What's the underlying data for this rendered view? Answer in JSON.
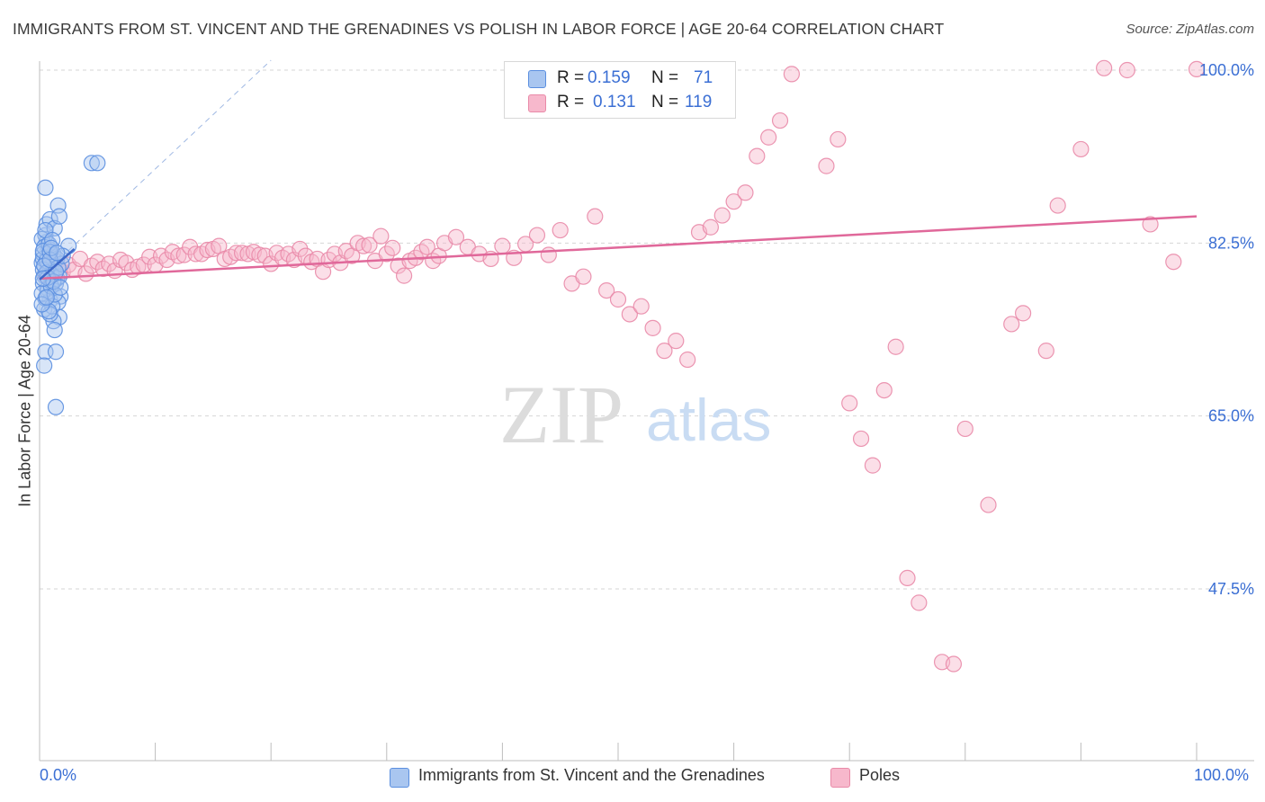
{
  "title": "IMMIGRANTS FROM ST. VINCENT AND THE GRENADINES VS POLISH IN LABOR FORCE | AGE 20-64 CORRELATION CHART",
  "source": "Source: ZipAtlas.com",
  "legend": {
    "row1": {
      "r_label": "R =",
      "r_value": "0.159",
      "n_label": "N =",
      "n_value": "71"
    },
    "row2": {
      "r_label": "R =",
      "r_value": "0.131",
      "n_label": "N =",
      "n_value": "119"
    }
  },
  "bottom_legend": {
    "series1": "Immigrants from St. Vincent and the Grenadines",
    "series2": "Poles"
  },
  "axes": {
    "x_min_label": "0.0%",
    "x_max_label": "100.0%",
    "y_title": "In Labor Force | Age 20-64"
  },
  "colors": {
    "blue_fill": "#a9c6f0",
    "blue_stroke": "#5b8fe0",
    "blue_line": "#3d68c8",
    "pink_fill": "#f7b8cc",
    "pink_stroke": "#e98aa8",
    "pink_line": "#e0689a",
    "tick_label": "#3b6fd4",
    "grid": "#d5d5d5"
  },
  "chart_data": {
    "type": "scatter",
    "title": "IMMIGRANTS FROM ST. VINCENT AND THE GRENADINES VS POLISH IN LABOR FORCE | AGE 20-64 CORRELATION CHART",
    "xlabel": "",
    "ylabel": "In Labor Force | Age 20-64",
    "xlim": [
      0,
      100
    ],
    "ylim": [
      30,
      102
    ],
    "y_ticks": [
      47.5,
      65.0,
      82.5,
      100.0
    ],
    "y_tick_labels": [
      "47.5%",
      "65.0%",
      "82.5%",
      "100.0%"
    ],
    "grid": true,
    "legend_position": "top-center",
    "series": [
      {
        "name": "Immigrants from St. Vincent and the Grenadines",
        "color": "#5b8fe0",
        "r": 0.159,
        "n": 71,
        "trend": {
          "x": [
            0,
            3
          ],
          "y": [
            78.8,
            81.9
          ]
        },
        "reference_line": {
          "x": [
            0,
            20
          ],
          "y": [
            79.0,
            101.0
          ]
        },
        "points": [
          [
            0.2,
            80.5
          ],
          [
            0.4,
            79.2
          ],
          [
            0.3,
            81.4
          ],
          [
            0.6,
            82.6
          ],
          [
            0.5,
            83.3
          ],
          [
            0.8,
            81.9
          ],
          [
            1.0,
            80.1
          ],
          [
            0.3,
            78.4
          ],
          [
            0.7,
            77.6
          ],
          [
            0.9,
            76.7
          ],
          [
            0.4,
            75.8
          ],
          [
            1.2,
            79.8
          ],
          [
            1.5,
            78.9
          ],
          [
            1.1,
            81.1
          ],
          [
            0.2,
            82.9
          ],
          [
            0.6,
            84.4
          ],
          [
            0.9,
            84.9
          ],
          [
            1.3,
            84.0
          ],
          [
            1.6,
            86.3
          ],
          [
            1.7,
            85.2
          ],
          [
            0.5,
            88.1
          ],
          [
            4.5,
            90.6
          ],
          [
            5.0,
            90.6
          ],
          [
            2.5,
            82.2
          ],
          [
            1.8,
            77.1
          ],
          [
            1.6,
            76.5
          ],
          [
            1.7,
            75.0
          ],
          [
            1.2,
            74.6
          ],
          [
            1.3,
            73.7
          ],
          [
            0.5,
            71.5
          ],
          [
            1.4,
            71.5
          ],
          [
            0.4,
            70.1
          ],
          [
            1.4,
            65.9
          ],
          [
            0.3,
            80.9
          ],
          [
            0.8,
            80.3
          ],
          [
            1.0,
            79.4
          ],
          [
            1.4,
            78.4
          ],
          [
            0.7,
            77.9
          ],
          [
            0.5,
            76.9
          ],
          [
            1.1,
            76.1
          ],
          [
            0.9,
            75.3
          ],
          [
            0.3,
            79.8
          ],
          [
            0.6,
            80.7
          ],
          [
            1.2,
            81.4
          ],
          [
            0.4,
            82.1
          ],
          [
            0.8,
            82.4
          ],
          [
            1.5,
            80.9
          ],
          [
            1.7,
            79.1
          ],
          [
            0.2,
            77.4
          ],
          [
            1.0,
            78.1
          ],
          [
            1.9,
            80.4
          ],
          [
            0.3,
            81.7
          ],
          [
            0.6,
            79.5
          ],
          [
            1.3,
            77.3
          ],
          [
            0.8,
            75.6
          ],
          [
            0.2,
            76.3
          ],
          [
            1.6,
            80.0
          ],
          [
            2.0,
            81.2
          ],
          [
            0.5,
            83.8
          ],
          [
            1.1,
            82.8
          ],
          [
            0.9,
            81.6
          ],
          [
            0.4,
            80.2
          ],
          [
            0.7,
            79.0
          ],
          [
            1.2,
            78.6
          ],
          [
            1.8,
            78.0
          ],
          [
            0.6,
            77.0
          ],
          [
            1.4,
            79.6
          ],
          [
            0.9,
            80.8
          ],
          [
            0.3,
            78.9
          ],
          [
            1.0,
            82.0
          ],
          [
            1.5,
            81.5
          ]
        ]
      },
      {
        "name": "Poles",
        "color": "#e98aa8",
        "r": 0.131,
        "n": 119,
        "trend": {
          "x": [
            0,
            100
          ],
          "y": [
            78.9,
            85.2
          ]
        },
        "points": [
          [
            0.5,
            79.3
          ],
          [
            1.0,
            80.1
          ],
          [
            1.5,
            80.6
          ],
          [
            2.0,
            79.6
          ],
          [
            2.5,
            80.3
          ],
          [
            3.0,
            79.8
          ],
          [
            3.5,
            80.9
          ],
          [
            4.0,
            79.4
          ],
          [
            4.5,
            80.2
          ],
          [
            5.0,
            80.6
          ],
          [
            5.5,
            79.9
          ],
          [
            6.0,
            80.4
          ],
          [
            6.5,
            79.7
          ],
          [
            7.0,
            80.8
          ],
          [
            7.5,
            80.5
          ],
          [
            8.0,
            79.8
          ],
          [
            8.5,
            80.1
          ],
          [
            9.0,
            80.3
          ],
          [
            9.5,
            81.1
          ],
          [
            10.0,
            80.3
          ],
          [
            10.5,
            81.2
          ],
          [
            11.0,
            80.8
          ],
          [
            11.5,
            81.6
          ],
          [
            12.0,
            81.2
          ],
          [
            12.5,
            81.3
          ],
          [
            13.0,
            82.1
          ],
          [
            13.5,
            81.4
          ],
          [
            14.0,
            81.4
          ],
          [
            14.5,
            81.8
          ],
          [
            15.0,
            81.9
          ],
          [
            15.5,
            82.2
          ],
          [
            16.0,
            80.9
          ],
          [
            16.5,
            81.1
          ],
          [
            17.0,
            81.5
          ],
          [
            17.5,
            81.5
          ],
          [
            18.0,
            81.4
          ],
          [
            18.5,
            81.6
          ],
          [
            19.0,
            81.3
          ],
          [
            19.5,
            81.2
          ],
          [
            20.0,
            80.4
          ],
          [
            20.5,
            81.5
          ],
          [
            21.0,
            81.0
          ],
          [
            21.5,
            81.4
          ],
          [
            22.0,
            80.8
          ],
          [
            22.5,
            81.9
          ],
          [
            23.0,
            81.2
          ],
          [
            23.5,
            80.6
          ],
          [
            24.0,
            80.9
          ],
          [
            24.5,
            79.6
          ],
          [
            25.0,
            80.8
          ],
          [
            25.5,
            81.4
          ],
          [
            26.0,
            80.5
          ],
          [
            26.5,
            81.7
          ],
          [
            27.0,
            81.2
          ],
          [
            27.5,
            82.5
          ],
          [
            28.0,
            82.2
          ],
          [
            28.5,
            82.3
          ],
          [
            29.0,
            80.7
          ],
          [
            29.5,
            83.2
          ],
          [
            30.0,
            81.4
          ],
          [
            30.5,
            82.0
          ],
          [
            31.0,
            80.2
          ],
          [
            31.5,
            79.2
          ],
          [
            32.0,
            80.7
          ],
          [
            32.5,
            81.0
          ],
          [
            33.0,
            81.6
          ],
          [
            33.5,
            82.1
          ],
          [
            34.0,
            80.7
          ],
          [
            34.5,
            81.2
          ],
          [
            35.0,
            82.5
          ],
          [
            36.0,
            83.1
          ],
          [
            37.0,
            82.1
          ],
          [
            38.0,
            81.4
          ],
          [
            39.0,
            80.9
          ],
          [
            40.0,
            82.2
          ],
          [
            41.0,
            81.0
          ],
          [
            42.0,
            82.4
          ],
          [
            43.0,
            83.3
          ],
          [
            44.0,
            81.3
          ],
          [
            45.0,
            83.8
          ],
          [
            46.0,
            78.4
          ],
          [
            47.0,
            79.1
          ],
          [
            48.0,
            85.2
          ],
          [
            49.0,
            77.7
          ],
          [
            50.0,
            76.8
          ],
          [
            51.0,
            75.3
          ],
          [
            52.0,
            76.1
          ],
          [
            53.0,
            73.9
          ],
          [
            54.0,
            71.6
          ],
          [
            55.0,
            72.6
          ],
          [
            56.0,
            70.7
          ],
          [
            57.0,
            83.6
          ],
          [
            58.0,
            84.1
          ],
          [
            59.0,
            85.3
          ],
          [
            60.0,
            86.7
          ],
          [
            61.0,
            87.6
          ],
          [
            62.0,
            91.3
          ],
          [
            63.0,
            93.2
          ],
          [
            64.0,
            94.9
          ],
          [
            65.0,
            99.6
          ],
          [
            68.0,
            90.3
          ],
          [
            69.0,
            93.0
          ],
          [
            70.0,
            66.3
          ],
          [
            71.0,
            62.7
          ],
          [
            72.0,
            60.0
          ],
          [
            73.0,
            67.6
          ],
          [
            74.0,
            72.0
          ],
          [
            75.0,
            48.6
          ],
          [
            76.0,
            46.1
          ],
          [
            78.0,
            40.1
          ],
          [
            79.0,
            39.9
          ],
          [
            80.0,
            63.7
          ],
          [
            82.0,
            56.0
          ],
          [
            84.0,
            74.3
          ],
          [
            85.0,
            75.4
          ],
          [
            87.0,
            71.6
          ],
          [
            88.0,
            86.3
          ],
          [
            90.0,
            92.0
          ],
          [
            92.0,
            100.2
          ],
          [
            94.0,
            100.0
          ],
          [
            96.0,
            84.4
          ],
          [
            98.0,
            80.6
          ],
          [
            100.0,
            100.1
          ]
        ]
      }
    ]
  }
}
